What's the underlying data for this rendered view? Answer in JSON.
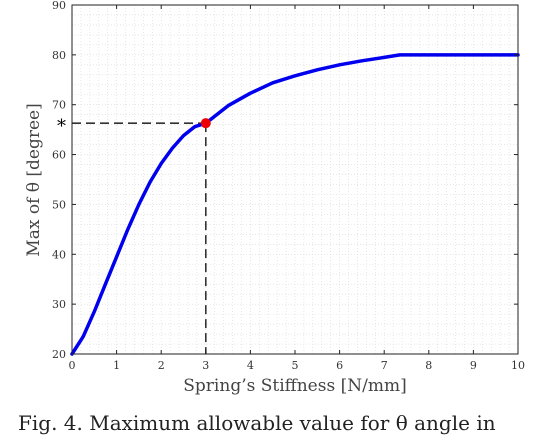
{
  "chart_data": {
    "type": "line",
    "xlabel": "Spring’s Stiffness [N/mm]",
    "ylabel": "Max of θ [degree]",
    "xlim": [
      0,
      10
    ],
    "ylim": [
      20,
      90
    ],
    "xticks": [
      0,
      1,
      2,
      3,
      4,
      5,
      6,
      7,
      8,
      9,
      10
    ],
    "yticks": [
      20,
      30,
      40,
      50,
      60,
      70,
      80,
      90
    ],
    "grid": "minor dotted",
    "series": [
      {
        "color": "#0000ee",
        "x": [
          0,
          0.25,
          0.5,
          0.75,
          1.0,
          1.25,
          1.5,
          1.75,
          2.0,
          2.25,
          2.5,
          2.75,
          3.0,
          3.5,
          4.0,
          4.5,
          5.0,
          5.5,
          6.0,
          6.5,
          7.0,
          7.35,
          8,
          9,
          10
        ],
        "y": [
          20,
          23.5,
          28.5,
          34,
          39.5,
          45,
          50,
          54.5,
          58.2,
          61.3,
          63.8,
          65.6,
          66.3,
          69.8,
          72.3,
          74.4,
          75.8,
          77,
          78,
          78.8,
          79.5,
          80,
          80,
          80,
          80
        ]
      }
    ],
    "highlight": {
      "x": 3,
      "y": 66.3,
      "color": "#ee0000",
      "label": "*"
    }
  },
  "caption": "Fig. 4. Maximum allowable value for θ angle in"
}
